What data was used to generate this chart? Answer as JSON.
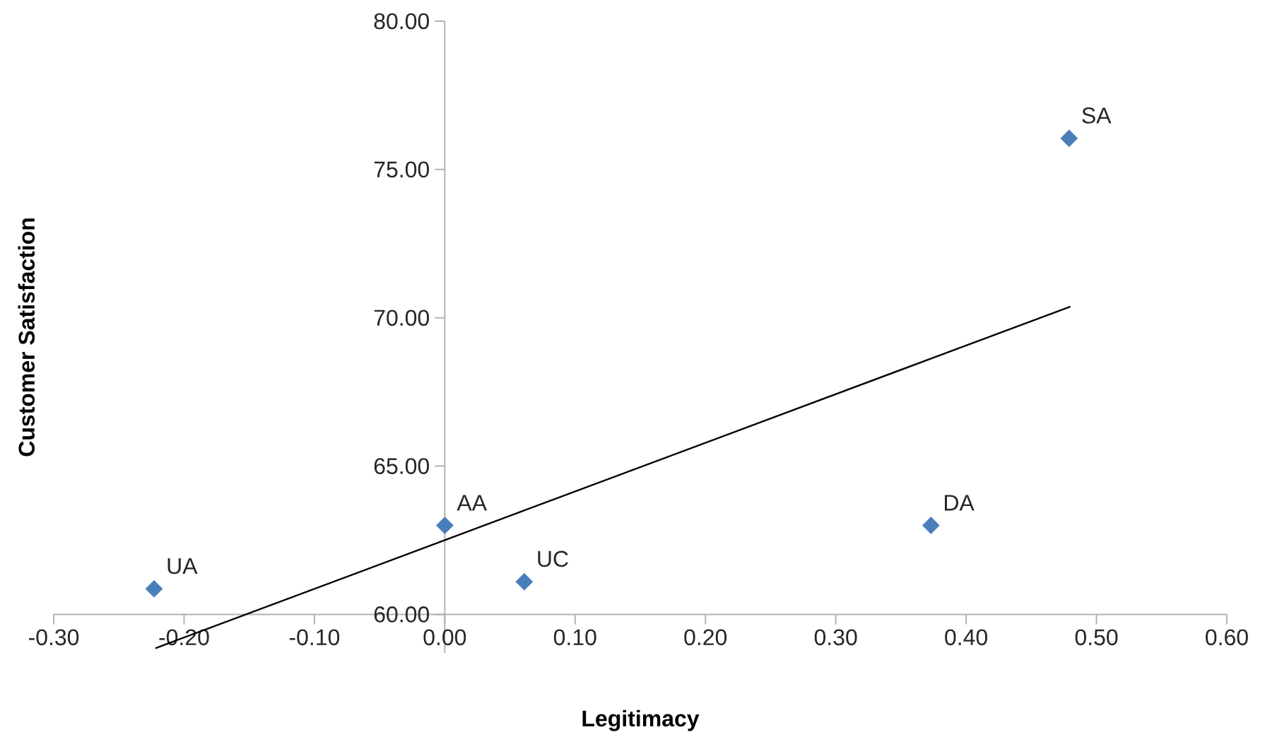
{
  "chart_data": {
    "type": "scatter",
    "xlabel": "Legitimacy",
    "ylabel": "Customer Satisfaction",
    "xlim": [
      -0.3,
      0.6
    ],
    "ylim": [
      58.7,
      80
    ],
    "xticks": [
      {
        "value": -0.3,
        "label": "-0.30"
      },
      {
        "value": -0.2,
        "label": "-0.20"
      },
      {
        "value": -0.1,
        "label": "-0.10"
      },
      {
        "value": 0,
        "label": "0.00"
      },
      {
        "value": 0.1,
        "label": "0.10"
      },
      {
        "value": 0.2,
        "label": "0.20"
      },
      {
        "value": 0.3,
        "label": "0.30"
      },
      {
        "value": 0.4,
        "label": "0.40"
      },
      {
        "value": 0.5,
        "label": "0.50"
      },
      {
        "value": 0.6,
        "label": "0.60"
      }
    ],
    "yticks": [
      {
        "value": 60,
        "label": "60.00"
      },
      {
        "value": 65,
        "label": "65.00"
      },
      {
        "value": 70,
        "label": "70.00"
      },
      {
        "value": 75,
        "label": "75.00"
      },
      {
        "value": 80,
        "label": "80.00"
      }
    ],
    "series": [
      {
        "marker": "diamond",
        "color": "#4a7ebb",
        "x": [
          -0.223,
          0.0,
          0.061,
          0.373,
          0.479
        ],
        "values": [
          60.86,
          63.0,
          61.1,
          63.0,
          76.05
        ]
      },
      {
        "type": "line",
        "marker": "none",
        "color": "#000000",
        "x": [
          -0.222,
          0.48
        ],
        "values": [
          58.86,
          70.38
        ]
      }
    ],
    "annotations": [
      {
        "text": "UA",
        "x": -0.223,
        "y": 60.86
      },
      {
        "text": "AA",
        "x": 0.0,
        "y": 63.0
      },
      {
        "text": "UC",
        "x": 0.061,
        "y": 61.1
      },
      {
        "text": "DA",
        "x": 0.373,
        "y": 63.0
      },
      {
        "text": "SA",
        "x": 0.479,
        "y": 76.05
      }
    ]
  }
}
